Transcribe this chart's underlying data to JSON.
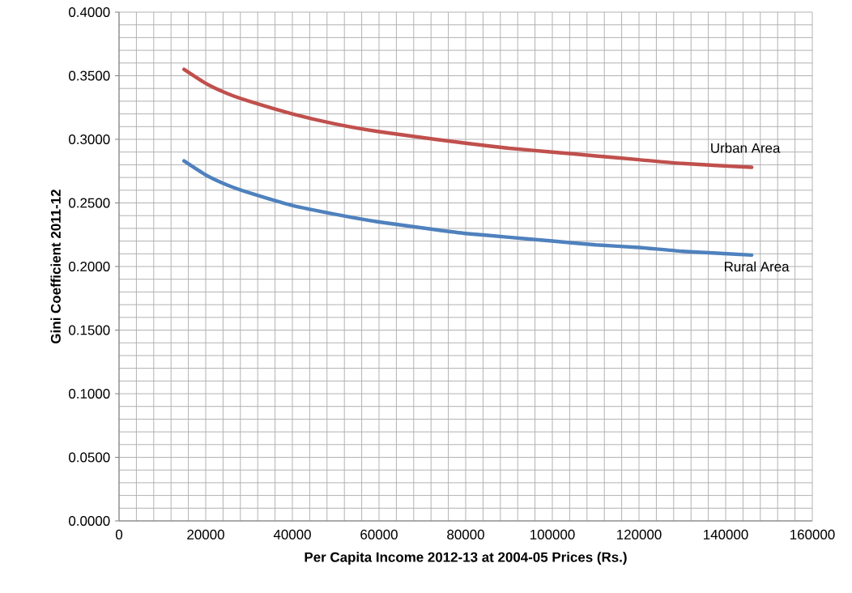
{
  "chart_data": {
    "type": "line",
    "xlabel": "Per Capita Income 2012-13 at 2004-05 Prices (Rs.)",
    "ylabel": "Gini Coefficient 2011-12",
    "x": [
      15000,
      20000,
      25000,
      30000,
      40000,
      50000,
      60000,
      73000,
      80000,
      90000,
      100000,
      110000,
      120000,
      130000,
      146000
    ],
    "series": [
      {
        "name": "Urban Area",
        "color": "#c0504d",
        "values": [
          0.355,
          0.344,
          0.336,
          0.33,
          0.32,
          0.312,
          0.306,
          0.3,
          0.297,
          0.293,
          0.29,
          0.287,
          0.284,
          0.281,
          0.278
        ]
      },
      {
        "name": "Rural Area",
        "color": "#4f81bd",
        "values": [
          0.283,
          0.272,
          0.264,
          0.258,
          0.248,
          0.241,
          0.235,
          0.229,
          0.226,
          0.223,
          0.22,
          0.217,
          0.215,
          0.212,
          0.209
        ]
      }
    ],
    "xlim": [
      0,
      160000
    ],
    "xticks": [
      0,
      20000,
      40000,
      60000,
      80000,
      100000,
      120000,
      140000,
      160000
    ],
    "ylim": [
      0,
      0.4
    ],
    "yticks": [
      {
        "value": 0,
        "label": "0.0000"
      },
      {
        "value": 0.05,
        "label": "0.0500"
      },
      {
        "value": 0.1,
        "label": "0.1000"
      },
      {
        "value": 0.15,
        "label": "0.1500"
      },
      {
        "value": 0.2,
        "label": "0.2000"
      },
      {
        "value": 0.25,
        "label": "0.2500"
      },
      {
        "value": 0.3,
        "label": "0.3000"
      },
      {
        "value": 0.35,
        "label": "0.3500"
      },
      {
        "value": 0.4,
        "label": "0.4000"
      }
    ],
    "grid": true,
    "legend": false,
    "marker": "none",
    "line_style": "solid"
  }
}
